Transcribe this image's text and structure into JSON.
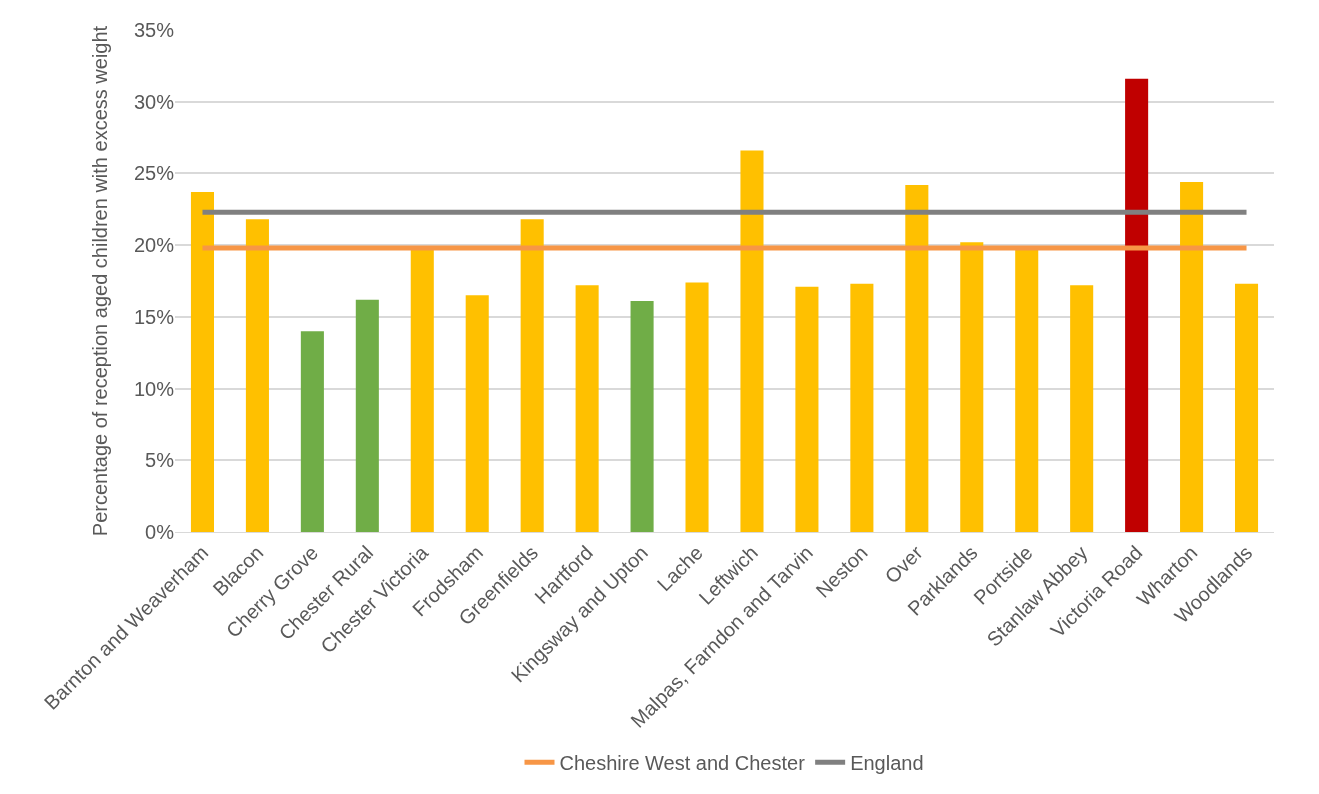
{
  "chart_data": {
    "type": "bar",
    "ylabel": "Percentage of reception aged children with excess weight",
    "categories": [
      "Barnton and Weaverham",
      "Blacon",
      "Cherry Grove",
      "Chester Rural",
      "Chester Victoria",
      "Frodsham",
      "Greenfields",
      "Hartford",
      "Kingsway and Upton",
      "Lache",
      "Leftwich",
      "Malpas, Farndon and Tarvin",
      "Neston",
      "Over",
      "Parklands",
      "Portside",
      "Stanlaw Abbey",
      "Victoria Road",
      "Wharton",
      "Woodlands"
    ],
    "series": [
      {
        "colors": [
          "#ffc000",
          "#ffc000",
          "#70ad47",
          "#70ad47",
          "#ffc000",
          "#ffc000",
          "#ffc000",
          "#ffc000",
          "#70ad47",
          "#ffc000",
          "#ffc000",
          "#ffc000",
          "#ffc000",
          "#ffc000",
          "#ffc000",
          "#ffc000",
          "#ffc000",
          "#c00000",
          "#ffc000",
          "#ffc000"
        ],
        "values": [
          23.7,
          21.8,
          14.0,
          16.2,
          19.7,
          16.5,
          21.8,
          17.2,
          16.1,
          17.4,
          26.6,
          17.1,
          17.3,
          24.2,
          20.2,
          19.7,
          17.2,
          31.6,
          24.4,
          17.3
        ]
      },
      {
        "type": "line",
        "name": "Cheshire West and Chester",
        "color": "#f79646",
        "values": [
          19.8,
          19.8,
          19.8,
          19.8,
          19.8,
          19.8,
          19.8,
          19.8,
          19.8,
          19.8,
          19.8,
          19.8,
          19.8,
          19.8,
          19.8,
          19.8,
          19.8,
          19.8,
          19.8,
          19.8
        ]
      },
      {
        "type": "line",
        "name": "England",
        "color": "#808080",
        "values": [
          22.3,
          22.3,
          22.3,
          22.3,
          22.3,
          22.3,
          22.3,
          22.3,
          22.3,
          22.3,
          22.3,
          22.3,
          22.3,
          22.3,
          22.3,
          22.3,
          22.3,
          22.3,
          22.3,
          22.3
        ]
      }
    ],
    "ylim": [
      0,
      35
    ],
    "yticks": [
      {
        "value": 0,
        "label": "0%"
      },
      {
        "value": 5,
        "label": "5%"
      },
      {
        "value": 10,
        "label": "10%"
      },
      {
        "value": 15,
        "label": "15%"
      },
      {
        "value": 20,
        "label": "20%"
      },
      {
        "value": 25,
        "label": "25%"
      },
      {
        "value": 30,
        "label": "30%"
      },
      {
        "value": 35,
        "label": "35%"
      }
    ],
    "grid": "y",
    "legend": "bottom",
    "marker": "none",
    "line_style": "solid"
  }
}
